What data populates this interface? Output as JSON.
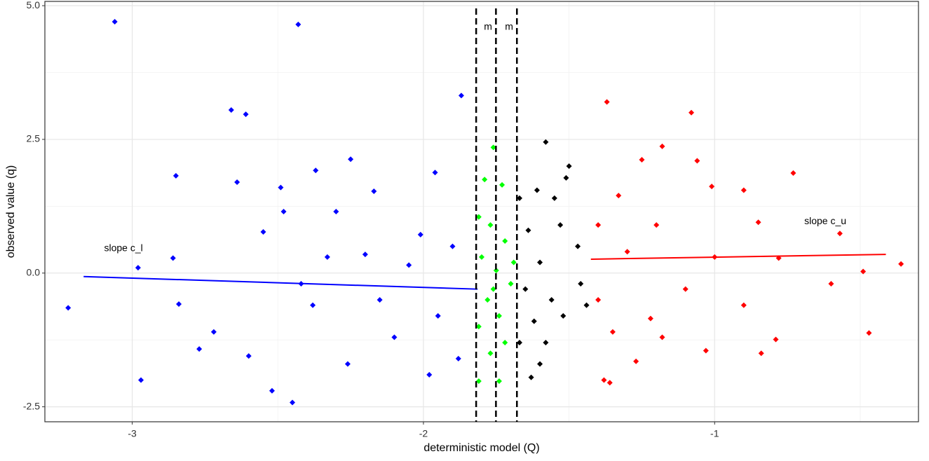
{
  "chart_data": {
    "type": "scatter",
    "xlabel": "deterministic model (Q)",
    "ylabel": "observed value (q)",
    "xlim": [
      -3.3,
      -0.3
    ],
    "ylim": [
      -2.78,
      5.08
    ],
    "xticks": [
      -3,
      -2,
      -1
    ],
    "yticks": [
      {
        "value": -2.5,
        "label": "-2.5"
      },
      {
        "value": 0,
        "label": "0.0"
      },
      2.5,
      {
        "value": 5,
        "label": "5.0"
      }
    ],
    "xminor": [
      -2.5,
      -1.5,
      -0.5
    ],
    "yminor": [
      -1.25,
      1.25,
      3.75
    ],
    "grid": true,
    "series": [
      {
        "color": "#0000ff",
        "x": [
          -3.06,
          -2.43,
          -1.87,
          -2.66,
          -2.61,
          -2.85,
          -2.25,
          -2.37,
          -2.64,
          -2.48,
          -2.49,
          -1.96,
          -2.17,
          -2.01,
          -2.3,
          -3.22,
          -2.98,
          -2.86,
          -2.97,
          -2.77,
          -2.52,
          -2.45,
          -2.38,
          -2.26,
          -2.1,
          -1.95,
          -1.88,
          -2.55,
          -2.33,
          -2.05,
          -1.9,
          -2.6,
          -2.15,
          -2.42,
          -1.98,
          -2.72,
          -2.84,
          -2.2
        ],
        "values": [
          4.7,
          4.65,
          3.32,
          3.05,
          2.97,
          1.82,
          2.13,
          1.92,
          1.7,
          1.15,
          1.6,
          1.88,
          1.53,
          0.72,
          1.15,
          -0.65,
          0.1,
          0.28,
          -2.0,
          -1.42,
          -2.2,
          -2.42,
          -0.6,
          -1.7,
          -1.2,
          -0.8,
          -1.6,
          0.77,
          0.3,
          0.15,
          0.5,
          -1.55,
          -0.5,
          -0.2,
          -1.9,
          -1.1,
          -0.58,
          0.35
        ]
      },
      {
        "color": "#00ff00",
        "x": [
          -1.76,
          -1.79,
          -1.73,
          -1.81,
          -1.77,
          -1.72,
          -1.8,
          -1.75,
          -1.7,
          -1.78,
          -1.74,
          -1.81,
          -1.72,
          -1.77,
          -1.81,
          -1.74,
          -1.69,
          -1.76
        ],
        "values": [
          2.35,
          1.75,
          1.65,
          1.05,
          0.9,
          0.6,
          0.3,
          0.05,
          -0.2,
          -0.5,
          -0.8,
          -1.0,
          -1.3,
          -1.5,
          -2.02,
          -2.02,
          0.2,
          -0.3
        ]
      },
      {
        "color": "#000000",
        "x": [
          -1.58,
          -1.5,
          -1.51,
          -1.61,
          -1.55,
          -1.67,
          -1.64,
          -1.53,
          -1.47,
          -1.6,
          -1.65,
          -1.56,
          -1.46,
          -1.62,
          -1.52,
          -1.58,
          -1.67,
          -1.6,
          -1.63,
          -1.44
        ],
        "values": [
          2.45,
          2.0,
          1.78,
          1.55,
          1.4,
          1.4,
          0.8,
          0.9,
          0.5,
          0.2,
          -0.3,
          -0.5,
          -0.2,
          -0.9,
          -0.8,
          -1.3,
          -1.3,
          -1.7,
          -1.95,
          -0.6
        ]
      },
      {
        "color": "#ff0000",
        "x": [
          -1.37,
          -1.08,
          -1.18,
          -1.25,
          -1.06,
          -0.73,
          -1.33,
          -1.01,
          -0.9,
          -1.4,
          -1.2,
          -0.85,
          -0.57,
          -1.3,
          -1.0,
          -0.78,
          -0.36,
          -0.49,
          -1.4,
          -1.1,
          -0.9,
          -1.35,
          -1.18,
          -1.03,
          -1.27,
          -0.84,
          -0.47,
          -0.79,
          -1.38,
          -1.36,
          -0.6,
          -1.22
        ],
        "values": [
          3.2,
          3.0,
          2.37,
          2.12,
          2.1,
          1.87,
          1.45,
          1.62,
          1.55,
          0.9,
          0.9,
          0.95,
          0.74,
          0.4,
          0.3,
          0.28,
          0.17,
          0.03,
          -0.5,
          -0.3,
          -0.6,
          -1.1,
          -1.2,
          -1.45,
          -1.65,
          -1.5,
          -1.12,
          -1.24,
          -2.0,
          -2.05,
          -0.2,
          -0.85
        ]
      }
    ],
    "lines": [
      {
        "color": "#0000ff",
        "x": [
          -3.167,
          -1.814
        ],
        "values": [
          -0.065,
          -0.3
        ]
      },
      {
        "color": "#ff0000",
        "x": [
          -1.425,
          -0.412
        ],
        "values": [
          0.26,
          0.35
        ]
      }
    ],
    "vlines": [
      -1.819,
      -1.751,
      -1.679
    ],
    "annotations": [
      {
        "text": "m",
        "x": -1.778,
        "y": 4.6
      },
      {
        "text": "m",
        "x": -1.706,
        "y": 4.6
      },
      {
        "text": "slope c_l",
        "x": -3.03,
        "y": 0.46
      },
      {
        "text": "slope c_u",
        "x": -0.62,
        "y": 0.96
      }
    ]
  }
}
